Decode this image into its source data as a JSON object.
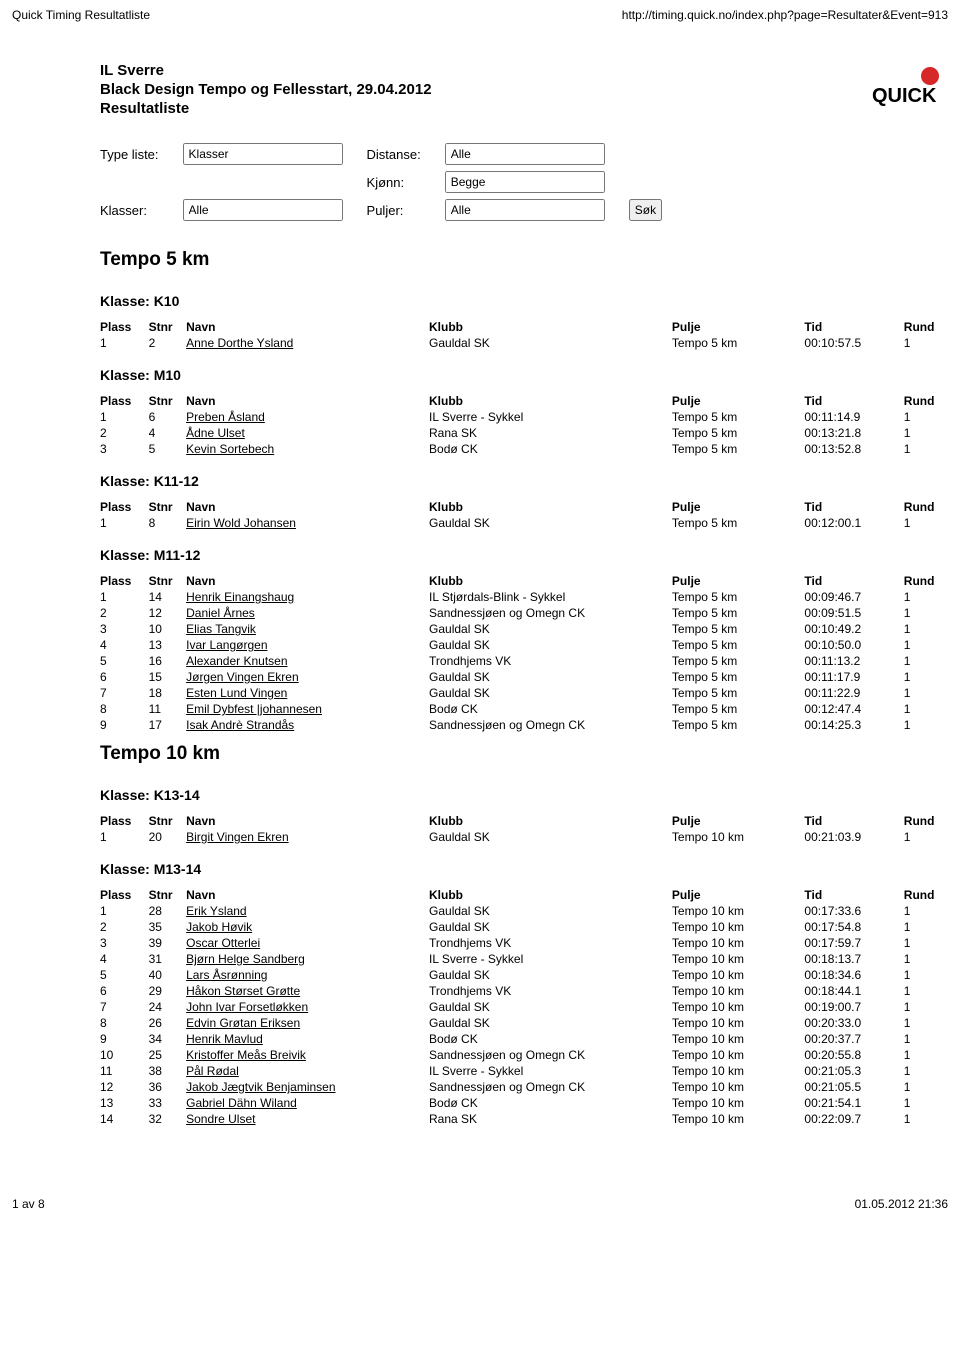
{
  "top": {
    "left": "Quick Timing Resultatliste",
    "right": "http://timing.quick.no/index.php?page=Resultater&Event=913"
  },
  "event": {
    "org": "IL Sverre",
    "name": "Black Design Tempo og Fellesstart, 29.04.2012",
    "sub": "Resultatliste"
  },
  "logo": {
    "line1": "QUICK",
    "dot_color": "#d62828"
  },
  "filters": {
    "type_label": "Type liste:",
    "type_value": "Klasser",
    "distanse_label": "Distanse:",
    "distanse_value": "Alle",
    "klasser_label": "Klasser:",
    "klasser_value": "Alle",
    "kjonn_label": "Kjønn:",
    "kjonn_value": "Begge",
    "puljer_label": "Puljer:",
    "puljer_value": "Alle",
    "sok_label": "Søk"
  },
  "headers": {
    "plass": "Plass",
    "stnr": "Stnr",
    "navn": "Navn",
    "klubb": "Klubb",
    "pulje": "Pulje",
    "tid": "Tid",
    "rund": "Rund"
  },
  "sections": [
    {
      "title": "Tempo 5 km",
      "classes": [
        {
          "name": "Klasse: K10",
          "rows": [
            {
              "plass": "1",
              "stnr": "2",
              "navn": "Anne Dorthe Ysland",
              "klubb": "Gauldal SK",
              "pulje": "Tempo 5 km",
              "tid": "00:10:57.5",
              "rund": "1"
            }
          ]
        },
        {
          "name": "Klasse: M10",
          "rows": [
            {
              "plass": "1",
              "stnr": "6",
              "navn": "Preben Åsland",
              "klubb": "IL Sverre - Sykkel",
              "pulje": "Tempo 5 km",
              "tid": "00:11:14.9",
              "rund": "1"
            },
            {
              "plass": "2",
              "stnr": "4",
              "navn": "Ådne Ulset",
              "klubb": "Rana SK",
              "pulje": "Tempo 5 km",
              "tid": "00:13:21.8",
              "rund": "1"
            },
            {
              "plass": "3",
              "stnr": "5",
              "navn": "Kevin Sortebech",
              "klubb": "Bodø CK",
              "pulje": "Tempo 5 km",
              "tid": "00:13:52.8",
              "rund": "1"
            }
          ]
        },
        {
          "name": "Klasse: K11-12",
          "rows": [
            {
              "plass": "1",
              "stnr": "8",
              "navn": "Eirin Wold Johansen",
              "klubb": "Gauldal SK",
              "pulje": "Tempo 5 km",
              "tid": "00:12:00.1",
              "rund": "1"
            }
          ]
        },
        {
          "name": "Klasse: M11-12",
          "rows": [
            {
              "plass": "1",
              "stnr": "14",
              "navn": "Henrik Einangshaug",
              "klubb": "IL Stjørdals-Blink - Sykkel",
              "pulje": "Tempo 5 km",
              "tid": "00:09:46.7",
              "rund": "1"
            },
            {
              "plass": "2",
              "stnr": "12",
              "navn": "Daniel Årnes",
              "klubb": "Sandnessjøen og Omegn CK",
              "pulje": "Tempo 5 km",
              "tid": "00:09:51.5",
              "rund": "1"
            },
            {
              "plass": "3",
              "stnr": "10",
              "navn": "Elias Tangvik",
              "klubb": "Gauldal SK",
              "pulje": "Tempo 5 km",
              "tid": "00:10:49.2",
              "rund": "1"
            },
            {
              "plass": "4",
              "stnr": "13",
              "navn": "Ivar Langørgen",
              "klubb": "Gauldal SK",
              "pulje": "Tempo 5 km",
              "tid": "00:10:50.0",
              "rund": "1"
            },
            {
              "plass": "5",
              "stnr": "16",
              "navn": "Alexander Knutsen",
              "klubb": "Trondhjems VK",
              "pulje": "Tempo 5 km",
              "tid": "00:11:13.2",
              "rund": "1"
            },
            {
              "plass": "6",
              "stnr": "15",
              "navn": "Jørgen Vingen Ekren",
              "klubb": "Gauldal SK",
              "pulje": "Tempo 5 km",
              "tid": "00:11:17.9",
              "rund": "1"
            },
            {
              "plass": "7",
              "stnr": "18",
              "navn": "Esten Lund Vingen",
              "klubb": "Gauldal SK",
              "pulje": "Tempo 5 km",
              "tid": "00:11:22.9",
              "rund": "1"
            },
            {
              "plass": "8",
              "stnr": "11",
              "navn": "Emil Dybfest |johannesen",
              "klubb": "Bodø CK",
              "pulje": "Tempo 5 km",
              "tid": "00:12:47.4",
              "rund": "1"
            },
            {
              "plass": "9",
              "stnr": "17",
              "navn": "Isak Andrè Strandås",
              "klubb": "Sandnessjøen og Omegn CK",
              "pulje": "Tempo 5 km",
              "tid": "00:14:25.3",
              "rund": "1"
            }
          ]
        }
      ]
    },
    {
      "title": "Tempo 10 km",
      "classes": [
        {
          "name": "Klasse: K13-14",
          "rows": [
            {
              "plass": "1",
              "stnr": "20",
              "navn": "Birgit Vingen Ekren",
              "klubb": "Gauldal SK",
              "pulje": "Tempo 10 km",
              "tid": "00:21:03.9",
              "rund": "1"
            }
          ]
        },
        {
          "name": "Klasse: M13-14",
          "rows": [
            {
              "plass": "1",
              "stnr": "28",
              "navn": "Erik Ysland",
              "klubb": "Gauldal SK",
              "pulje": "Tempo 10 km",
              "tid": "00:17:33.6",
              "rund": "1"
            },
            {
              "plass": "2",
              "stnr": "35",
              "navn": "Jakob Høvik",
              "klubb": "Gauldal SK",
              "pulje": "Tempo 10 km",
              "tid": "00:17:54.8",
              "rund": "1"
            },
            {
              "plass": "3",
              "stnr": "39",
              "navn": "Oscar Otterlei",
              "klubb": "Trondhjems VK",
              "pulje": "Tempo 10 km",
              "tid": "00:17:59.7",
              "rund": "1"
            },
            {
              "plass": "4",
              "stnr": "31",
              "navn": "Bjørn Helge Sandberg",
              "klubb": "IL Sverre - Sykkel",
              "pulje": "Tempo 10 km",
              "tid": "00:18:13.7",
              "rund": "1"
            },
            {
              "plass": "5",
              "stnr": "40",
              "navn": "Lars Åsrønning",
              "klubb": "Gauldal SK",
              "pulje": "Tempo 10 km",
              "tid": "00:18:34.6",
              "rund": "1"
            },
            {
              "plass": "6",
              "stnr": "29",
              "navn": "Håkon Størset Grøtte",
              "klubb": "Trondhjems VK",
              "pulje": "Tempo 10 km",
              "tid": "00:18:44.1",
              "rund": "1"
            },
            {
              "plass": "7",
              "stnr": "24",
              "navn": "John Ivar Forsetløkken",
              "klubb": "Gauldal SK",
              "pulje": "Tempo 10 km",
              "tid": "00:19:00.7",
              "rund": "1"
            },
            {
              "plass": "8",
              "stnr": "26",
              "navn": "Edvin Grøtan Eriksen",
              "klubb": "Gauldal SK",
              "pulje": "Tempo 10 km",
              "tid": "00:20:33.0",
              "rund": "1"
            },
            {
              "plass": "9",
              "stnr": "34",
              "navn": "Henrik Mavlud",
              "klubb": "Bodø CK",
              "pulje": "Tempo 10 km",
              "tid": "00:20:37.7",
              "rund": "1"
            },
            {
              "plass": "10",
              "stnr": "25",
              "navn": "Kristoffer Meås Breivik",
              "klubb": "Sandnessjøen og Omegn CK",
              "pulje": "Tempo 10 km",
              "tid": "00:20:55.8",
              "rund": "1"
            },
            {
              "plass": "11",
              "stnr": "38",
              "navn": "Pål Rødal",
              "klubb": "IL Sverre - Sykkel",
              "pulje": "Tempo 10 km",
              "tid": "00:21:05.3",
              "rund": "1"
            },
            {
              "plass": "12",
              "stnr": "36",
              "navn": "Jakob Jægtvik Benjaminsen",
              "klubb": "Sandnessjøen og Omegn CK",
              "pulje": "Tempo 10 km",
              "tid": "00:21:05.5",
              "rund": "1"
            },
            {
              "plass": "13",
              "stnr": "33",
              "navn": "Gabriel Dähn Wiland",
              "klubb": "Bodø CK",
              "pulje": "Tempo 10 km",
              "tid": "00:21:54.1",
              "rund": "1"
            },
            {
              "plass": "14",
              "stnr": "32",
              "navn": "Sondre Ulset",
              "klubb": "Rana SK",
              "pulje": "Tempo 10 km",
              "tid": "00:22:09.7",
              "rund": "1"
            }
          ]
        }
      ]
    }
  ],
  "footer": {
    "left": "1 av 8",
    "right": "01.05.2012 21:36"
  }
}
